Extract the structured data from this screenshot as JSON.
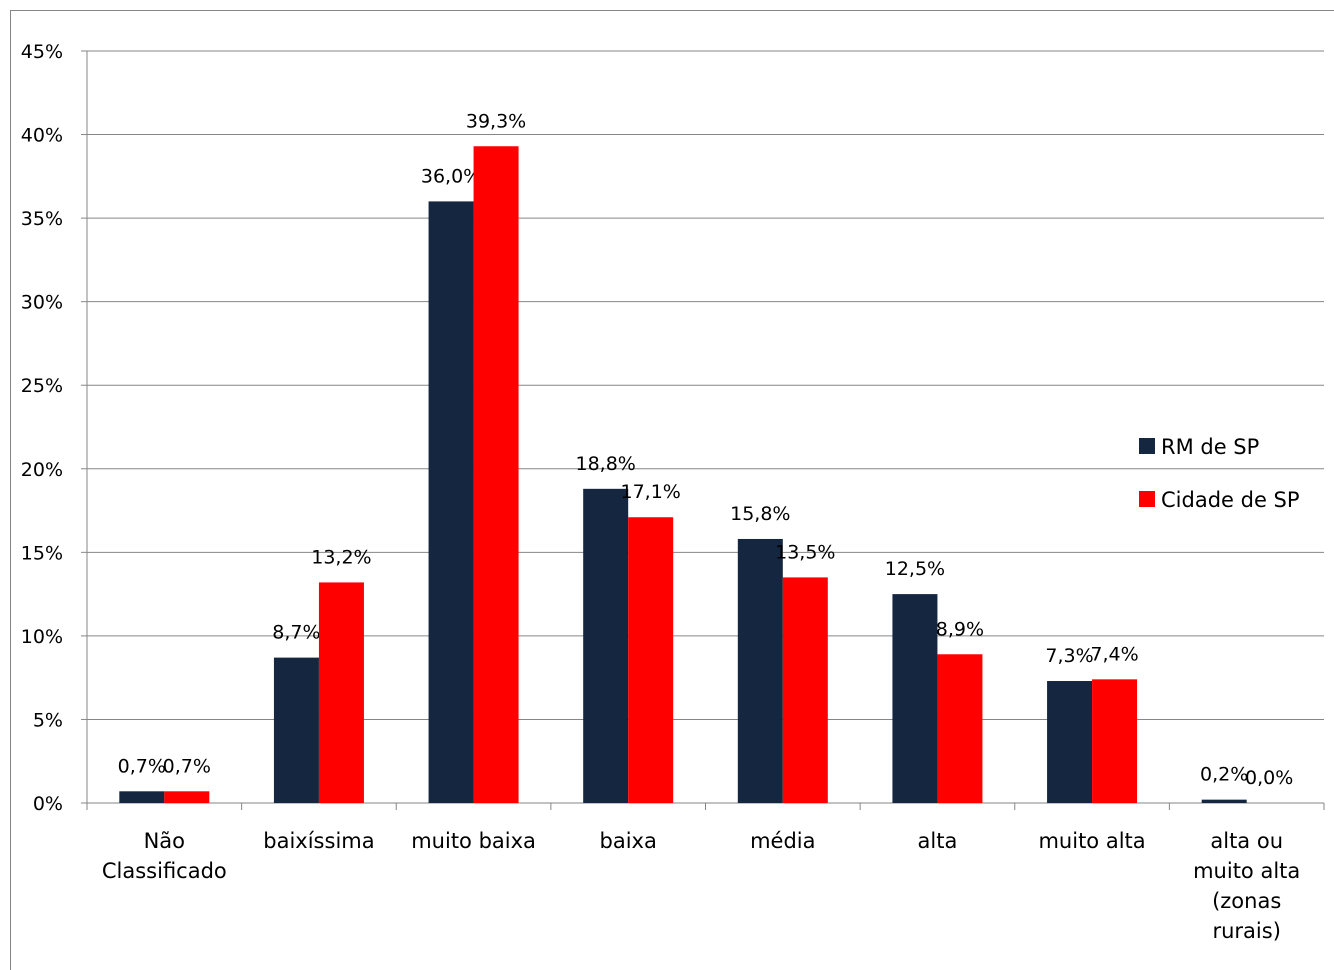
{
  "chart_data": {
    "type": "bar",
    "title": "",
    "xlabel": "",
    "ylabel": "",
    "ylim": [
      0,
      45
    ],
    "y_ticks": [
      "0%",
      "5%",
      "10%",
      "15%",
      "20%",
      "25%",
      "30%",
      "35%",
      "40%",
      "45%"
    ],
    "grid": true,
    "legend_position": "right",
    "categories": [
      [
        "Não",
        "Classificado"
      ],
      [
        "baixíssima"
      ],
      [
        "muito baixa"
      ],
      [
        "baixa"
      ],
      [
        "média"
      ],
      [
        "alta"
      ],
      [
        "muito alta"
      ],
      [
        "alta ou",
        "muito alta",
        "(zonas",
        "rurais)"
      ]
    ],
    "series": [
      {
        "name": "RM de SP",
        "color": "#142640",
        "values": [
          0.7,
          8.7,
          36.0,
          18.8,
          15.8,
          12.5,
          7.3,
          0.2
        ],
        "labels": [
          "0,7%",
          "8,7%",
          "36,0%",
          "18,8%",
          "15,8%",
          "12,5%",
          "7,3%",
          "0,2%"
        ]
      },
      {
        "name": "Cidade de SP",
        "color": "#ff0000",
        "values": [
          0.7,
          13.2,
          39.3,
          17.1,
          13.5,
          8.9,
          7.4,
          0.0
        ],
        "labels": [
          "0,7%",
          "13,2%",
          "39,3%",
          "17,1%",
          "13,5%",
          "8,9%",
          "7,4%",
          "0,0%"
        ]
      }
    ]
  }
}
